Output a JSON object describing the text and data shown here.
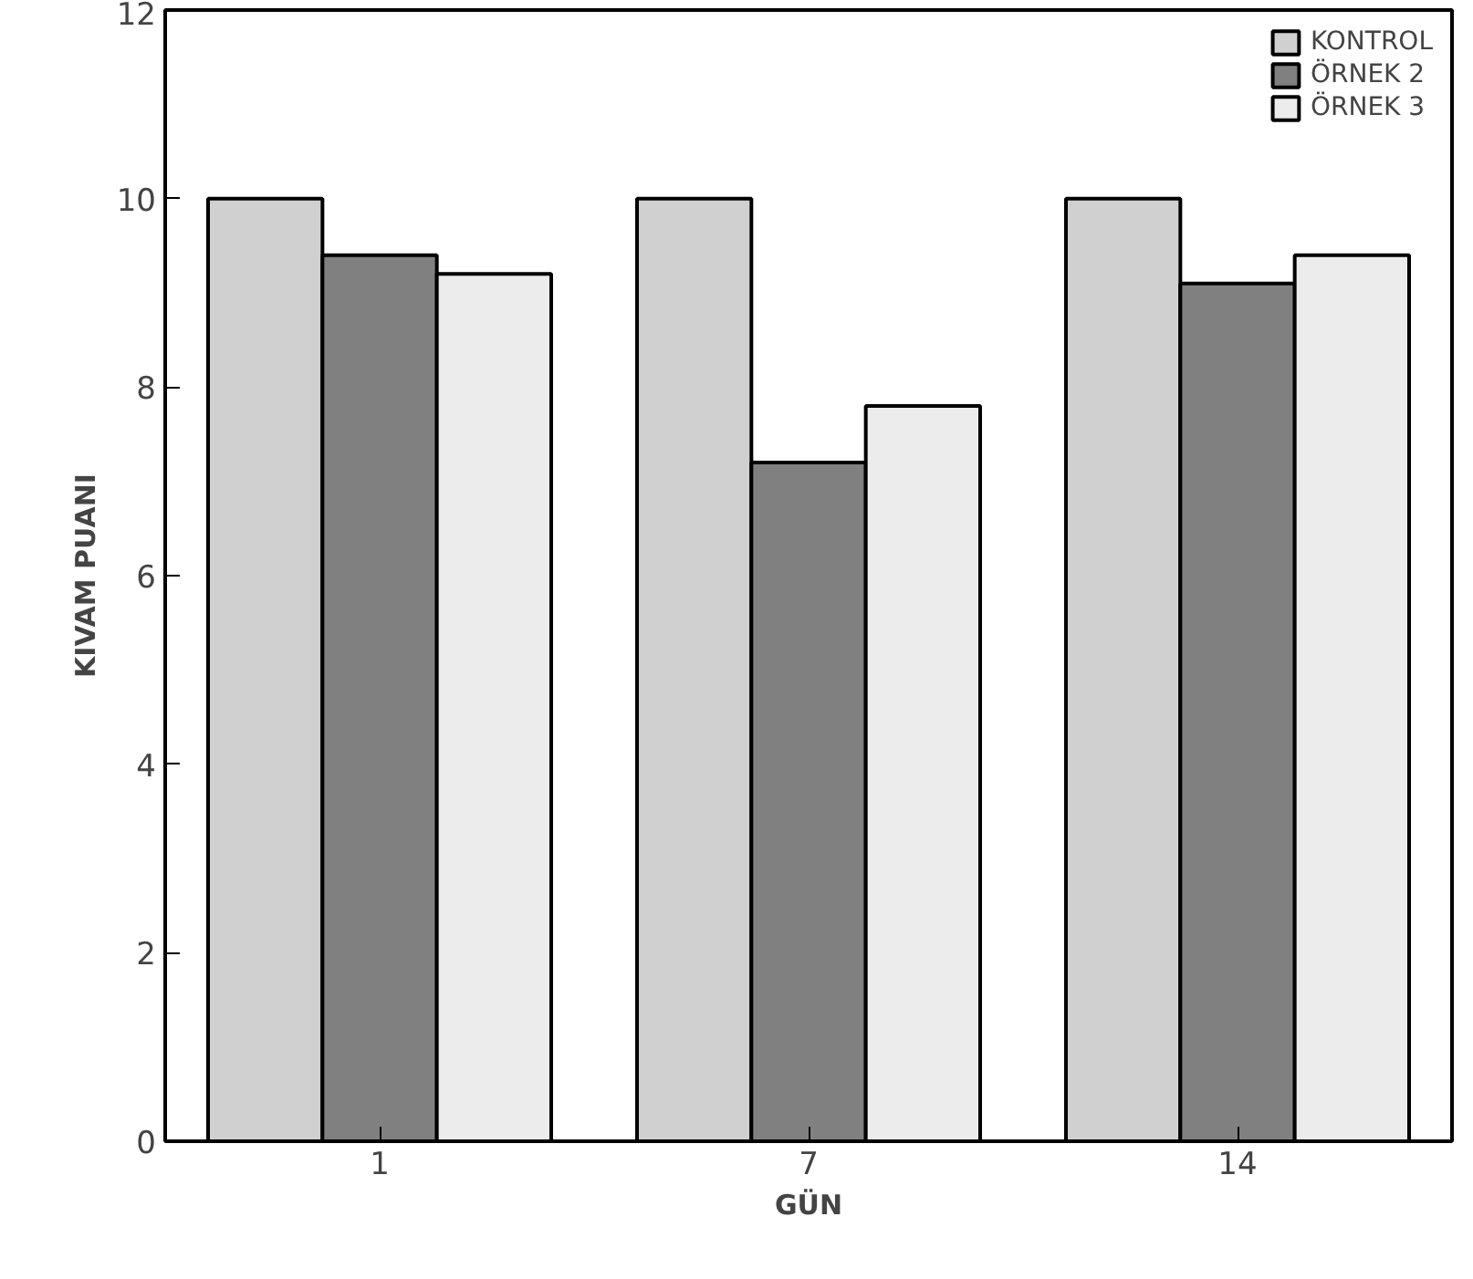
{
  "chart_data": {
    "type": "bar",
    "xlabel": "GÜN",
    "ylabel": "KIVAM PUANI",
    "categories": [
      "1",
      "7",
      "14"
    ],
    "series": [
      {
        "name": "KONTROL",
        "color": "#d0d0d0",
        "values": [
          10,
          10,
          10
        ]
      },
      {
        "name": "ÖRNEK 2",
        "color": "#808080",
        "values": [
          9.4,
          7.2,
          9.1
        ]
      },
      {
        "name": "ÖRNEK 3",
        "color": "#ececec",
        "values": [
          9.2,
          7.8,
          9.4
        ]
      }
    ],
    "ylim": [
      0,
      12
    ],
    "yticks": [
      0,
      2,
      4,
      6,
      8,
      10,
      12
    ],
    "grid": false,
    "legend": "top right"
  }
}
